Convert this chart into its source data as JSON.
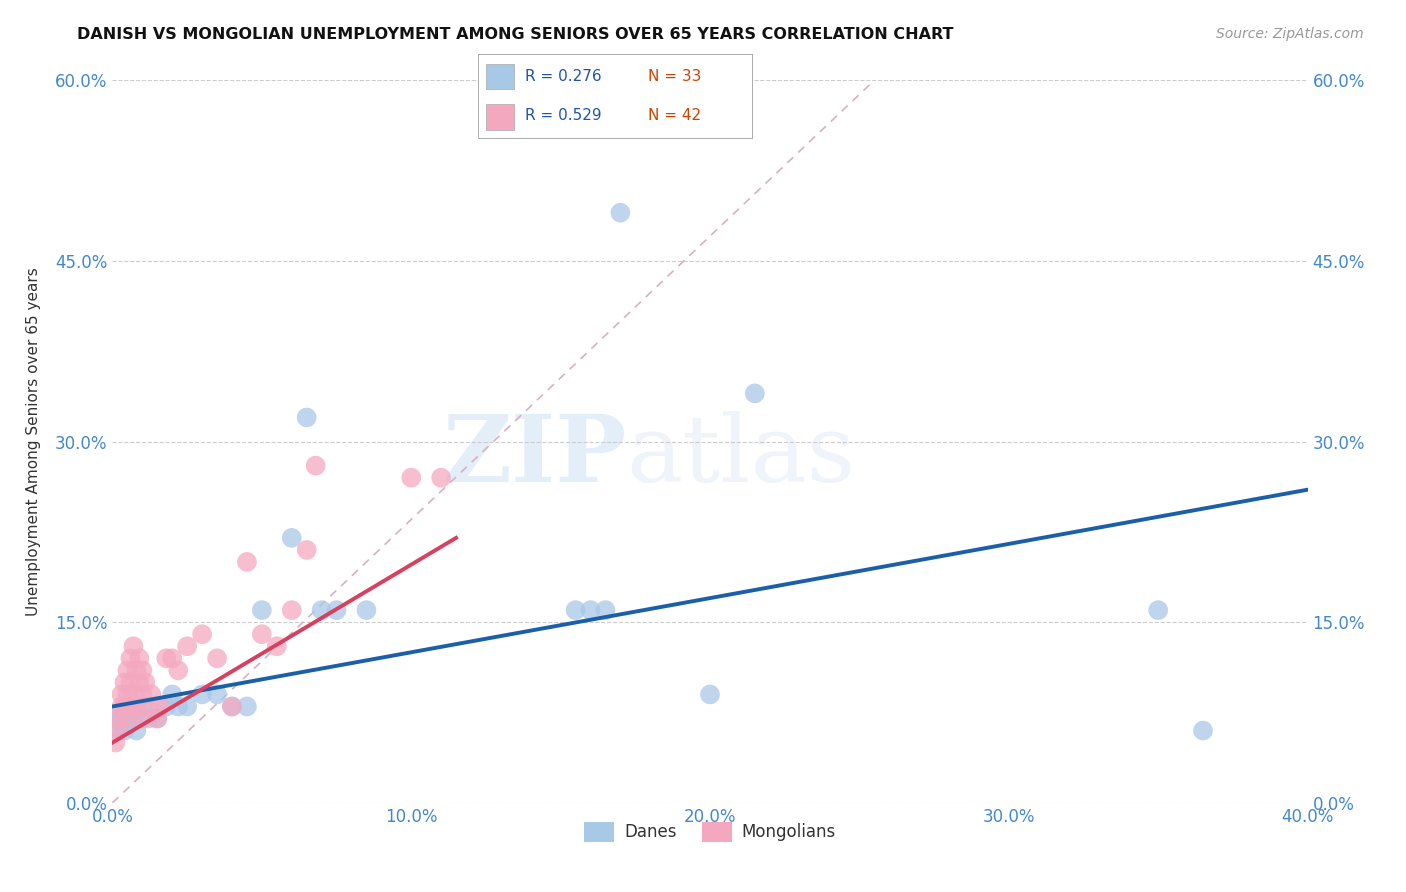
{
  "title": "DANISH VS MONGOLIAN UNEMPLOYMENT AMONG SENIORS OVER 65 YEARS CORRELATION CHART",
  "source": "Source: ZipAtlas.com",
  "ylabel": "Unemployment Among Seniors over 65 years",
  "xlabel_ticks": [
    "0.0%",
    "10.0%",
    "20.0%",
    "30.0%",
    "40.0%"
  ],
  "ylabel_ticks": [
    "0.0%",
    "15.0%",
    "30.0%",
    "45.0%",
    "60.0%"
  ],
  "xlim": [
    0.0,
    0.4
  ],
  "ylim": [
    0.0,
    0.6
  ],
  "danes_R": "0.276",
  "danes_N": "33",
  "mongolians_R": "0.529",
  "mongolians_N": "42",
  "danes_color": "#a8c8e8",
  "mongolians_color": "#f4a8c0",
  "danes_line_color": "#1a5fa8",
  "mongolians_line_color": "#d84060",
  "danes_scatter": [
    [
      0.001,
      0.07
    ],
    [
      0.002,
      0.06
    ],
    [
      0.003,
      0.07
    ],
    [
      0.004,
      0.06
    ],
    [
      0.005,
      0.08
    ],
    [
      0.006,
      0.07
    ],
    [
      0.007,
      0.07
    ],
    [
      0.008,
      0.06
    ],
    [
      0.01,
      0.08
    ],
    [
      0.012,
      0.07
    ],
    [
      0.015,
      0.07
    ],
    [
      0.018,
      0.08
    ],
    [
      0.02,
      0.09
    ],
    [
      0.022,
      0.08
    ],
    [
      0.025,
      0.08
    ],
    [
      0.03,
      0.09
    ],
    [
      0.035,
      0.09
    ],
    [
      0.04,
      0.08
    ],
    [
      0.045,
      0.08
    ],
    [
      0.05,
      0.16
    ],
    [
      0.06,
      0.22
    ],
    [
      0.065,
      0.32
    ],
    [
      0.07,
      0.16
    ],
    [
      0.075,
      0.16
    ],
    [
      0.085,
      0.16
    ],
    [
      0.155,
      0.16
    ],
    [
      0.16,
      0.16
    ],
    [
      0.165,
      0.16
    ],
    [
      0.17,
      0.49
    ],
    [
      0.2,
      0.09
    ],
    [
      0.215,
      0.34
    ],
    [
      0.35,
      0.16
    ],
    [
      0.365,
      0.06
    ]
  ],
  "mongolians_scatter": [
    [
      0.001,
      0.05
    ],
    [
      0.002,
      0.06
    ],
    [
      0.002,
      0.07
    ],
    [
      0.003,
      0.08
    ],
    [
      0.003,
      0.09
    ],
    [
      0.004,
      0.1
    ],
    [
      0.004,
      0.08
    ],
    [
      0.005,
      0.11
    ],
    [
      0.005,
      0.09
    ],
    [
      0.005,
      0.07
    ],
    [
      0.006,
      0.1
    ],
    [
      0.006,
      0.08
    ],
    [
      0.006,
      0.12
    ],
    [
      0.007,
      0.13
    ],
    [
      0.007,
      0.09
    ],
    [
      0.008,
      0.11
    ],
    [
      0.008,
      0.08
    ],
    [
      0.009,
      0.1
    ],
    [
      0.009,
      0.12
    ],
    [
      0.01,
      0.09
    ],
    [
      0.01,
      0.11
    ],
    [
      0.01,
      0.07
    ],
    [
      0.011,
      0.1
    ],
    [
      0.012,
      0.08
    ],
    [
      0.013,
      0.09
    ],
    [
      0.015,
      0.07
    ],
    [
      0.016,
      0.08
    ],
    [
      0.018,
      0.12
    ],
    [
      0.02,
      0.12
    ],
    [
      0.022,
      0.11
    ],
    [
      0.025,
      0.13
    ],
    [
      0.03,
      0.14
    ],
    [
      0.035,
      0.12
    ],
    [
      0.04,
      0.08
    ],
    [
      0.045,
      0.2
    ],
    [
      0.05,
      0.14
    ],
    [
      0.055,
      0.13
    ],
    [
      0.06,
      0.16
    ],
    [
      0.065,
      0.21
    ],
    [
      0.068,
      0.28
    ],
    [
      0.1,
      0.27
    ],
    [
      0.11,
      0.27
    ]
  ],
  "danes_line_x": [
    0.0,
    0.4
  ],
  "danes_line_y": [
    0.08,
    0.26
  ],
  "mongolians_line_x": [
    0.0,
    0.115
  ],
  "mongolians_line_y": [
    0.05,
    0.22
  ],
  "diag_line_x": [
    0.0,
    0.255
  ],
  "diag_line_y": [
    0.0,
    0.6
  ],
  "watermark_zip": "ZIP",
  "watermark_atlas": "atlas",
  "background_color": "#ffffff",
  "grid_color": "#cccccc"
}
